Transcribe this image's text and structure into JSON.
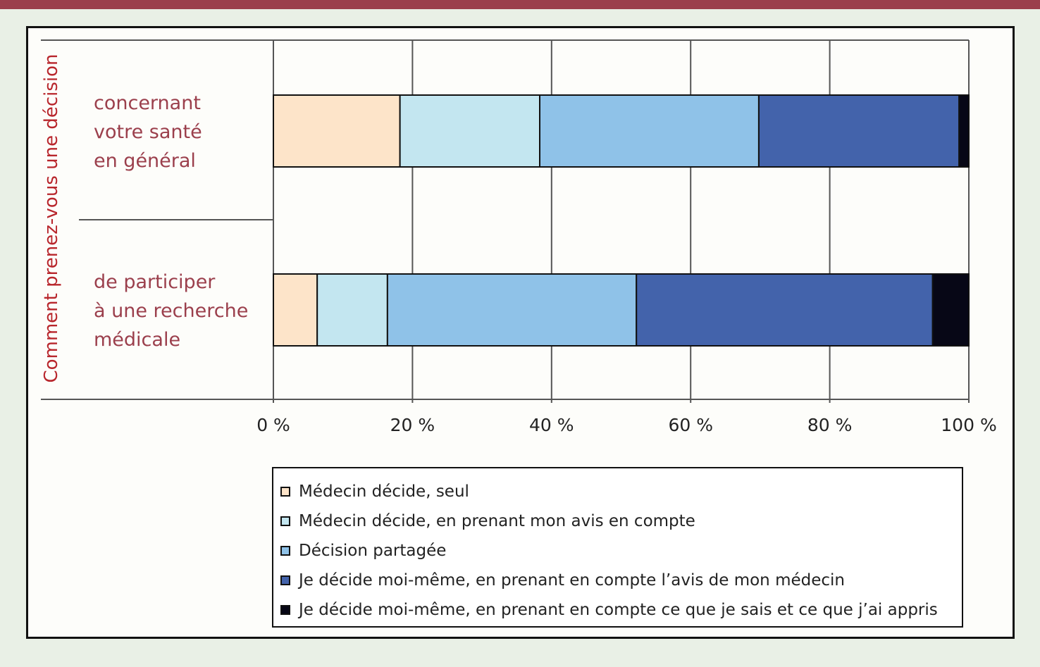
{
  "chart_data": {
    "type": "bar",
    "orientation": "horizontal",
    "stacked": true,
    "ylabel": "Comment prenez-vous une décision",
    "categories": [
      [
        "concernant",
        "votre santé",
        "en général"
      ],
      [
        "de participer",
        "à une recherche",
        "médicale"
      ]
    ],
    "series": [
      {
        "name": "Médecin décide, seul",
        "color": "#fde4c9",
        "values": [
          18.2,
          6.3
        ]
      },
      {
        "name": "Médecin décide, en prenant mon avis en compte",
        "color": "#c3e6f0",
        "values": [
          20.1,
          10.1
        ]
      },
      {
        "name": "Décision partagée",
        "color": "#8fc2e8",
        "values": [
          31.5,
          35.8
        ]
      },
      {
        "name": "Je décide moi-même, en prenant en compte l’avis de mon médecin",
        "color": "#4363ab",
        "values": [
          28.8,
          42.6
        ]
      },
      {
        "name": "Je décide moi-même, en prenant en compte ce que je sais et ce que j’ai appris",
        "color": "#070716",
        "values": [
          1.4,
          5.2
        ]
      }
    ],
    "xticks": [
      "0 %",
      "20 %",
      "40 %",
      "60 %",
      "80 %",
      "100 %"
    ],
    "xlim": [
      0,
      100
    ],
    "grid": true,
    "legend_position": "bottom"
  },
  "colors": {
    "accent_band": "#9b3f4c",
    "label_red": "#b8262c",
    "category_text": "#9b3f4c"
  }
}
